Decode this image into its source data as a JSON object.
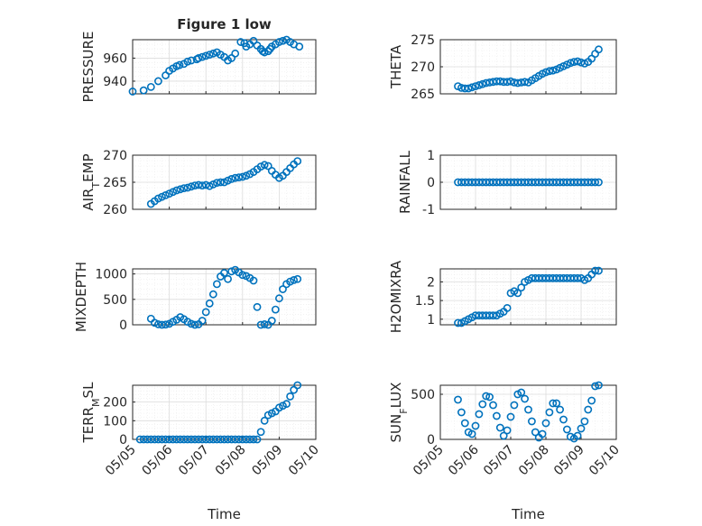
{
  "figure": {
    "background": "#ffffff",
    "marker_color": "#0072bd"
  },
  "chart_data": [
    {
      "type": "scatter",
      "panel": "pressure",
      "title": "Figure 1 low",
      "ylabel": "PRESSURE",
      "xlabel": "",
      "xlim": [
        0,
        5
      ],
      "ylim": [
        929,
        976
      ],
      "yticks": [
        940,
        960
      ],
      "ytick_labels": [
        "940",
        "960"
      ],
      "xticks": [
        0,
        1,
        2,
        3,
        4,
        5
      ],
      "xtick_labels": [
        "",
        "",
        "",
        "",
        "",
        ""
      ],
      "x": [
        0.0,
        0.3,
        0.5,
        0.7,
        0.9,
        1.0,
        1.1,
        1.2,
        1.28,
        1.4,
        1.5,
        1.6,
        1.75,
        1.8,
        1.9,
        2.0,
        2.1,
        2.2,
        2.3,
        2.4,
        2.5,
        2.6,
        2.7,
        2.8,
        2.95,
        3.05,
        3.1,
        3.2,
        3.3,
        3.4,
        3.5,
        3.55,
        3.6,
        3.7,
        3.75,
        3.8,
        3.9,
        4.0,
        4.1,
        4.2,
        4.3,
        4.4,
        4.55
      ],
      "y": [
        931,
        932,
        935,
        940,
        945,
        949,
        951,
        953,
        954,
        955,
        957,
        958,
        959,
        960,
        961,
        962,
        963,
        964,
        965,
        963,
        961,
        958,
        960,
        964,
        974,
        973,
        970,
        972,
        975,
        971,
        968,
        966,
        965,
        966,
        968,
        970,
        972,
        974,
        975,
        976,
        974,
        972,
        970
      ]
    },
    {
      "type": "scatter",
      "panel": "theta",
      "title": "",
      "ylabel": "THETA",
      "xlabel": "",
      "xlim": [
        0,
        5
      ],
      "ylim": [
        265,
        275
      ],
      "yticks": [
        265,
        270,
        275
      ],
      "ytick_labels": [
        "265",
        "270",
        "275"
      ],
      "xticks": [
        0,
        1,
        2,
        3,
        4,
        5
      ],
      "xtick_labels": [
        "",
        "",
        "",
        "",
        "",
        ""
      ],
      "x": [
        0.5,
        0.6,
        0.7,
        0.8,
        0.9,
        1.0,
        1.1,
        1.2,
        1.3,
        1.4,
        1.5,
        1.6,
        1.7,
        1.8,
        1.9,
        2.0,
        2.1,
        2.2,
        2.3,
        2.4,
        2.5,
        2.6,
        2.7,
        2.8,
        2.9,
        3.0,
        3.1,
        3.2,
        3.3,
        3.4,
        3.5,
        3.6,
        3.7,
        3.8,
        3.9,
        4.0,
        4.1,
        4.2,
        4.3,
        4.4,
        4.5
      ],
      "y": [
        266.4,
        266.1,
        266.0,
        266.0,
        266.2,
        266.4,
        266.6,
        266.8,
        267.0,
        267.1,
        267.2,
        267.3,
        267.3,
        267.2,
        267.2,
        267.3,
        267.1,
        267.0,
        267.1,
        267.2,
        267.1,
        267.5,
        267.9,
        268.3,
        268.7,
        269.0,
        269.2,
        269.3,
        269.5,
        269.8,
        270.1,
        270.4,
        270.7,
        270.9,
        271.0,
        270.8,
        270.6,
        270.9,
        271.5,
        272.4,
        273.2
      ]
    },
    {
      "type": "scatter",
      "panel": "air_temp",
      "title": "",
      "ylabel": "AIR_TEMP",
      "ylabel_main": "AIR",
      "ylabel_sub": "T",
      "ylabel_rest": "EMP",
      "xlabel": "",
      "xlim": [
        0,
        5
      ],
      "ylim": [
        260,
        270
      ],
      "yticks": [
        260,
        265,
        270
      ],
      "ytick_labels": [
        "260",
        "265",
        "270"
      ],
      "xticks": [
        0,
        1,
        2,
        3,
        4,
        5
      ],
      "xtick_labels": [
        "",
        "",
        "",
        "",
        "",
        ""
      ],
      "x": [
        0.5,
        0.6,
        0.7,
        0.8,
        0.9,
        1.0,
        1.1,
        1.2,
        1.3,
        1.4,
        1.5,
        1.6,
        1.7,
        1.8,
        1.9,
        2.0,
        2.1,
        2.2,
        2.3,
        2.4,
        2.5,
        2.6,
        2.7,
        2.8,
        2.9,
        3.0,
        3.1,
        3.2,
        3.3,
        3.4,
        3.5,
        3.6,
        3.7,
        3.8,
        3.9,
        4.0,
        4.1,
        4.2,
        4.3,
        4.4,
        4.5
      ],
      "y": [
        261.0,
        261.5,
        262.0,
        262.3,
        262.6,
        262.9,
        263.2,
        263.5,
        263.7,
        263.9,
        264.0,
        264.2,
        264.4,
        264.5,
        264.4,
        264.5,
        264.3,
        264.6,
        264.9,
        265.0,
        265.0,
        265.3,
        265.6,
        265.8,
        265.9,
        266.0,
        266.2,
        266.5,
        266.9,
        267.4,
        267.9,
        268.2,
        268.0,
        267.1,
        266.4,
        265.8,
        266.2,
        266.9,
        267.6,
        268.3,
        268.9
      ]
    },
    {
      "type": "scatter",
      "panel": "rainfall",
      "title": "",
      "ylabel": "RAINFALL",
      "xlabel": "",
      "xlim": [
        0,
        5
      ],
      "ylim": [
        -1,
        1
      ],
      "yticks": [
        -1,
        0,
        1
      ],
      "ytick_labels": [
        "-1",
        "0",
        "1"
      ],
      "xticks": [
        0,
        1,
        2,
        3,
        4,
        5
      ],
      "xtick_labels": [
        "",
        "",
        "",
        "",
        "",
        ""
      ],
      "x": [
        0.5,
        0.6,
        0.7,
        0.8,
        0.9,
        1.0,
        1.1,
        1.2,
        1.3,
        1.4,
        1.5,
        1.6,
        1.7,
        1.8,
        1.9,
        2.0,
        2.1,
        2.2,
        2.3,
        2.4,
        2.5,
        2.6,
        2.7,
        2.8,
        2.9,
        3.0,
        3.1,
        3.2,
        3.3,
        3.4,
        3.5,
        3.6,
        3.7,
        3.8,
        3.9,
        4.0,
        4.1,
        4.2,
        4.3,
        4.4,
        4.5
      ],
      "y": [
        0,
        0,
        0,
        0,
        0,
        0,
        0,
        0,
        0,
        0,
        0,
        0,
        0,
        0,
        0,
        0,
        0,
        0,
        0,
        0,
        0,
        0,
        0,
        0,
        0,
        0,
        0,
        0,
        0,
        0,
        0,
        0,
        0,
        0,
        0,
        0,
        0,
        0,
        0,
        0,
        0
      ]
    },
    {
      "type": "scatter",
      "panel": "mixdepth",
      "title": "",
      "ylabel": "MIXDEPTH",
      "xlabel": "",
      "xlim": [
        0,
        5
      ],
      "ylim": [
        0,
        1100
      ],
      "yticks": [
        0,
        500,
        1000
      ],
      "ytick_labels": [
        "0",
        "500",
        "1000"
      ],
      "xticks": [
        0,
        1,
        2,
        3,
        4,
        5
      ],
      "xtick_labels": [
        "",
        "",
        "",
        "",
        "",
        ""
      ],
      "x": [
        0.5,
        0.6,
        0.7,
        0.8,
        0.9,
        1.0,
        1.1,
        1.2,
        1.3,
        1.4,
        1.5,
        1.6,
        1.7,
        1.8,
        1.9,
        2.0,
        2.1,
        2.2,
        2.3,
        2.4,
        2.5,
        2.6,
        2.7,
        2.8,
        2.9,
        3.0,
        3.1,
        3.2,
        3.3,
        3.4,
        3.5,
        3.6,
        3.7,
        3.8,
        3.9,
        4.0,
        4.1,
        4.2,
        4.3,
        4.4,
        4.5
      ],
      "y": [
        120,
        40,
        10,
        0,
        5,
        20,
        60,
        100,
        150,
        110,
        60,
        20,
        0,
        10,
        80,
        250,
        420,
        600,
        800,
        950,
        1020,
        900,
        1050,
        1080,
        1030,
        980,
        960,
        920,
        870,
        350,
        0,
        10,
        0,
        80,
        300,
        520,
        700,
        800,
        850,
        880,
        900
      ]
    },
    {
      "type": "scatter",
      "panel": "h2omixra",
      "title": "",
      "ylabel": "H2OMIXRA",
      "xlabel": "",
      "xlim": [
        0,
        5
      ],
      "ylim": [
        0.85,
        2.35
      ],
      "yticks": [
        1,
        1.5,
        2
      ],
      "ytick_labels": [
        "1",
        "1.5",
        "2"
      ],
      "xticks": [
        0,
        1,
        2,
        3,
        4,
        5
      ],
      "xtick_labels": [
        "",
        "",
        "",
        "",
        "",
        ""
      ],
      "x": [
        0.5,
        0.6,
        0.7,
        0.8,
        0.9,
        1.0,
        1.1,
        1.2,
        1.3,
        1.4,
        1.5,
        1.6,
        1.7,
        1.8,
        1.9,
        2.0,
        2.1,
        2.2,
        2.3,
        2.4,
        2.5,
        2.6,
        2.7,
        2.8,
        2.9,
        3.0,
        3.1,
        3.2,
        3.3,
        3.4,
        3.5,
        3.6,
        3.7,
        3.8,
        3.9,
        4.0,
        4.1,
        4.2,
        4.3,
        4.4,
        4.5
      ],
      "y": [
        0.9,
        0.9,
        0.95,
        1.0,
        1.05,
        1.1,
        1.1,
        1.1,
        1.1,
        1.1,
        1.1,
        1.1,
        1.15,
        1.2,
        1.3,
        1.7,
        1.75,
        1.7,
        1.85,
        2.0,
        2.05,
        2.1,
        2.1,
        2.1,
        2.1,
        2.1,
        2.1,
        2.1,
        2.1,
        2.1,
        2.1,
        2.1,
        2.1,
        2.1,
        2.1,
        2.1,
        2.05,
        2.1,
        2.2,
        2.3,
        2.3
      ]
    },
    {
      "type": "scatter",
      "panel": "terr_msl",
      "title": "",
      "ylabel": "TERR_MSL",
      "ylabel_main": "TERR",
      "ylabel_sub": "M",
      "ylabel_rest": "SL",
      "xlabel": "Time",
      "xlim": [
        0,
        5
      ],
      "ylim": [
        0,
        290
      ],
      "yticks": [
        0,
        100,
        200
      ],
      "ytick_labels": [
        "0",
        "100",
        "200"
      ],
      "xticks": [
        0,
        1,
        2,
        3,
        4,
        5
      ],
      "xtick_labels": [
        "05/05",
        "05/06",
        "05/07",
        "05/08",
        "05/09",
        "05/10"
      ],
      "x": [
        0.2,
        0.3,
        0.4,
        0.5,
        0.6,
        0.7,
        0.8,
        0.9,
        1.0,
        1.1,
        1.2,
        1.3,
        1.4,
        1.5,
        1.6,
        1.7,
        1.8,
        1.9,
        2.0,
        2.1,
        2.2,
        2.3,
        2.4,
        2.5,
        2.6,
        2.7,
        2.8,
        2.9,
        3.0,
        3.1,
        3.2,
        3.3,
        3.4,
        3.5,
        3.6,
        3.7,
        3.8,
        3.9,
        4.0,
        4.1,
        4.2,
        4.3,
        4.4,
        4.5
      ],
      "y": [
        0,
        0,
        0,
        0,
        0,
        0,
        0,
        0,
        0,
        0,
        0,
        0,
        0,
        0,
        0,
        0,
        0,
        0,
        0,
        0,
        0,
        0,
        0,
        0,
        0,
        0,
        0,
        0,
        0,
        0,
        0,
        0,
        0,
        40,
        100,
        130,
        140,
        150,
        170,
        180,
        190,
        230,
        265,
        290
      ]
    },
    {
      "type": "scatter",
      "panel": "sun_flux",
      "title": "",
      "ylabel": "SUN_FLUX",
      "ylabel_main": "SUN",
      "ylabel_sub": "F",
      "ylabel_rest": "LUX",
      "xlabel": "Time",
      "xlim": [
        0,
        5
      ],
      "ylim": [
        0,
        600
      ],
      "yticks": [
        0,
        500
      ],
      "ytick_labels": [
        "0",
        "500"
      ],
      "xticks": [
        0,
        1,
        2,
        3,
        4,
        5
      ],
      "xtick_labels": [
        "05/05",
        "05/06",
        "05/07",
        "05/08",
        "05/09",
        "05/10"
      ],
      "x": [
        0.5,
        0.6,
        0.7,
        0.8,
        0.9,
        1.0,
        1.1,
        1.2,
        1.3,
        1.4,
        1.5,
        1.6,
        1.7,
        1.8,
        1.9,
        2.0,
        2.1,
        2.2,
        2.3,
        2.4,
        2.5,
        2.6,
        2.7,
        2.8,
        2.9,
        3.0,
        3.1,
        3.2,
        3.3,
        3.4,
        3.5,
        3.6,
        3.7,
        3.8,
        3.9,
        4.0,
        4.1,
        4.2,
        4.3,
        4.4,
        4.5
      ],
      "y": [
        440,
        300,
        180,
        80,
        60,
        150,
        280,
        390,
        480,
        470,
        380,
        260,
        130,
        40,
        100,
        250,
        380,
        500,
        520,
        450,
        330,
        200,
        80,
        20,
        60,
        180,
        300,
        400,
        400,
        330,
        220,
        110,
        30,
        10,
        40,
        120,
        200,
        330,
        430,
        590,
        600
      ]
    }
  ]
}
